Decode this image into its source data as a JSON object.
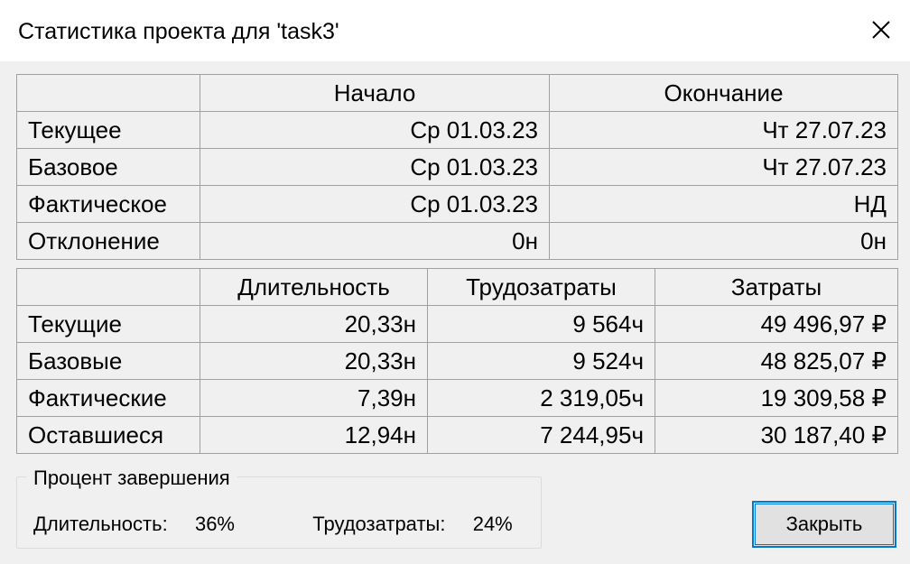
{
  "window": {
    "title": "Статистика проекта для 'task3'"
  },
  "dates_table": {
    "headers": [
      "",
      "Начало",
      "Окончание"
    ],
    "rows": [
      {
        "label": "Текущее",
        "start": "Ср 01.03.23",
        "finish": "Чт 27.07.23"
      },
      {
        "label": "Базовое",
        "start": "Ср 01.03.23",
        "finish": "Чт 27.07.23"
      },
      {
        "label": "Фактическое",
        "start": "Ср 01.03.23",
        "finish": "НД"
      },
      {
        "label": "Отклонение",
        "start": "0н",
        "finish": "0н"
      }
    ]
  },
  "stats_table": {
    "headers": [
      "",
      "Длительность",
      "Трудозатраты",
      "Затраты"
    ],
    "rows": [
      {
        "label": "Текущие",
        "duration": "20,33н",
        "work": "9 564ч",
        "cost": "49 496,97 ₽"
      },
      {
        "label": "Базовые",
        "duration": "20,33н",
        "work": "9 524ч",
        "cost": "48 825,07 ₽"
      },
      {
        "label": "Фактические",
        "duration": "7,39н",
        "work": "2 319,05ч",
        "cost": "19 309,58 ₽"
      },
      {
        "label": "Оставшиеся",
        "duration": "12,94н",
        "work": "7 244,95ч",
        "cost": "30 187,40 ₽"
      }
    ]
  },
  "percent_complete": {
    "legend": "Процент завершения",
    "duration_label": "Длительность:",
    "duration_value": "36%",
    "work_label": "Трудозатраты:",
    "work_value": "24%"
  },
  "buttons": {
    "close_label": "Закрыть"
  },
  "icons": {
    "close": "close-icon"
  },
  "colors": {
    "focus_border": "#0078d7",
    "grid_line": "#a0a0a0",
    "dialog_bg": "#f0f0f0"
  }
}
